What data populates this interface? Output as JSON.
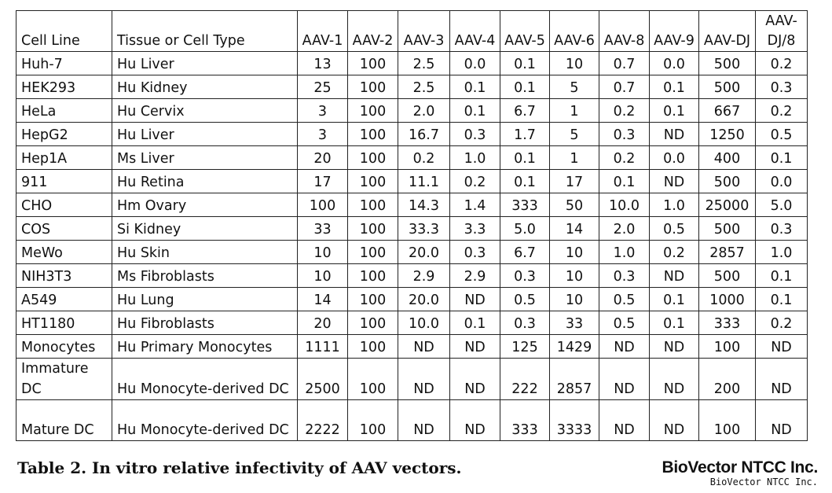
{
  "table": {
    "headers": [
      "Cell Line",
      "Tissue or Cell Type",
      "AAV-1",
      "AAV-2",
      "AAV-3",
      "AAV-4",
      "AAV-5",
      "AAV-6",
      "AAV-8",
      "AAV-9",
      "AAV-DJ",
      "AAV-DJ/8"
    ],
    "rows": [
      [
        "Huh-7",
        "Hu Liver",
        "13",
        "100",
        "2.5",
        "0.0",
        "0.1",
        "10",
        "0.7",
        "0.0",
        "500",
        "0.2"
      ],
      [
        "HEK293",
        "Hu Kidney",
        "25",
        "100",
        "2.5",
        "0.1",
        "0.1",
        "5",
        "0.7",
        "0.1",
        "500",
        "0.3"
      ],
      [
        "HeLa",
        "Hu Cervix",
        "3",
        "100",
        "2.0",
        "0.1",
        "6.7",
        "1",
        "0.2",
        "0.1",
        "667",
        "0.2"
      ],
      [
        "HepG2",
        "Hu Liver",
        "3",
        "100",
        "16.7",
        "0.3",
        "1.7",
        "5",
        "0.3",
        "ND",
        "1250",
        "0.5"
      ],
      [
        "Hep1A",
        "Ms Liver",
        "20",
        "100",
        "0.2",
        "1.0",
        "0.1",
        "1",
        "0.2",
        "0.0",
        "400",
        "0.1"
      ],
      [
        "911",
        "Hu Retina",
        "17",
        "100",
        "11.1",
        "0.2",
        "0.1",
        "17",
        "0.1",
        "ND",
        "500",
        "0.0"
      ],
      [
        "CHO",
        "Hm Ovary",
        "100",
        "100",
        "14.3",
        "1.4",
        "333",
        "50",
        "10.0",
        "1.0",
        "25000",
        "5.0"
      ],
      [
        "COS",
        "Si Kidney",
        "33",
        "100",
        "33.3",
        "3.3",
        "5.0",
        "14",
        "2.0",
        "0.5",
        "500",
        "0.3"
      ],
      [
        "MeWo",
        "Hu Skin",
        "10",
        "100",
        "20.0",
        "0.3",
        "6.7",
        "10",
        "1.0",
        "0.2",
        "2857",
        "1.0"
      ],
      [
        "NIH3T3",
        "Ms Fibroblasts",
        "10",
        "100",
        "2.9",
        "2.9",
        "0.3",
        "10",
        "0.3",
        "ND",
        "500",
        "0.1"
      ],
      [
        "A549",
        "Hu Lung",
        "14",
        "100",
        "20.0",
        "ND",
        "0.5",
        "10",
        "0.5",
        "0.1",
        "1000",
        "0.1"
      ],
      [
        "HT1180",
        "Hu Fibroblasts",
        "20",
        "100",
        "10.0",
        "0.1",
        "0.3",
        "33",
        "0.5",
        "0.1",
        "333",
        "0.2"
      ],
      [
        "Monocytes",
        "Hu Primary Monocytes",
        "1111",
        "100",
        "ND",
        "ND",
        "125",
        "1429",
        "ND",
        "ND",
        "100",
        "ND"
      ],
      [
        "Immature DC",
        "Hu Monocyte-derived DC",
        "2500",
        "100",
        "ND",
        "ND",
        "222",
        "2857",
        "ND",
        "ND",
        "200",
        "ND"
      ],
      [
        "Mature DC",
        "Hu Monocyte-derived DC",
        "2222",
        "100",
        "ND",
        "ND",
        "333",
        "3333",
        "ND",
        "ND",
        "100",
        "ND"
      ]
    ]
  },
  "caption": "Table 2. In vitro relative infectivity of AAV vectors.",
  "brand": {
    "logo_text": "BioVector NTCC Inc.",
    "sub_text": "BioVector NTCC Inc."
  }
}
